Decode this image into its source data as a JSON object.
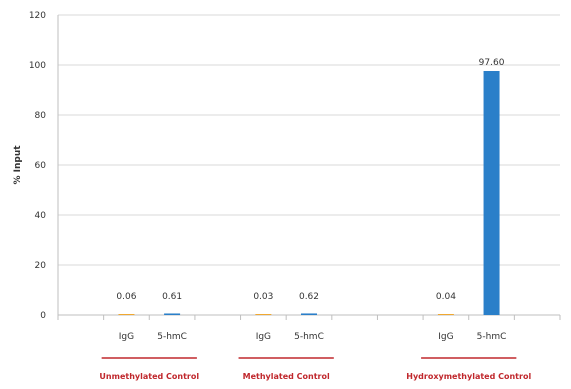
{
  "chart_data": {
    "type": "bar",
    "title": "",
    "xlabel": "",
    "ylabel": "% Input",
    "ylim": [
      0,
      120
    ],
    "yticks": [
      0,
      20,
      40,
      60,
      80,
      100,
      120
    ],
    "grid": true,
    "groups": [
      {
        "label": "Unmethylated Control",
        "bars": [
          {
            "category": "IgG",
            "value": 0.06,
            "value_label": "0.06"
          },
          {
            "category": "5-hmC",
            "value": 0.61,
            "value_label": "0.61"
          }
        ]
      },
      {
        "label": "Methylated Control",
        "bars": [
          {
            "category": "IgG",
            "value": 0.03,
            "value_label": "0.03"
          },
          {
            "category": "5-hmC",
            "value": 0.62,
            "value_label": "0.62"
          }
        ]
      },
      {
        "label": "Hydroxymethylated Control",
        "bars": [
          {
            "category": "IgG",
            "value": 0.04,
            "value_label": "0.04"
          },
          {
            "category": "5-hmC",
            "value": 97.6,
            "value_label": "97.60"
          }
        ]
      }
    ],
    "colors": {
      "IgG": "#f0a830",
      "5-hmC": "#2a7fc9",
      "group_underline": "#c0282d",
      "grid": "#d9d9d9",
      "axis": "#bfbfbf"
    }
  }
}
